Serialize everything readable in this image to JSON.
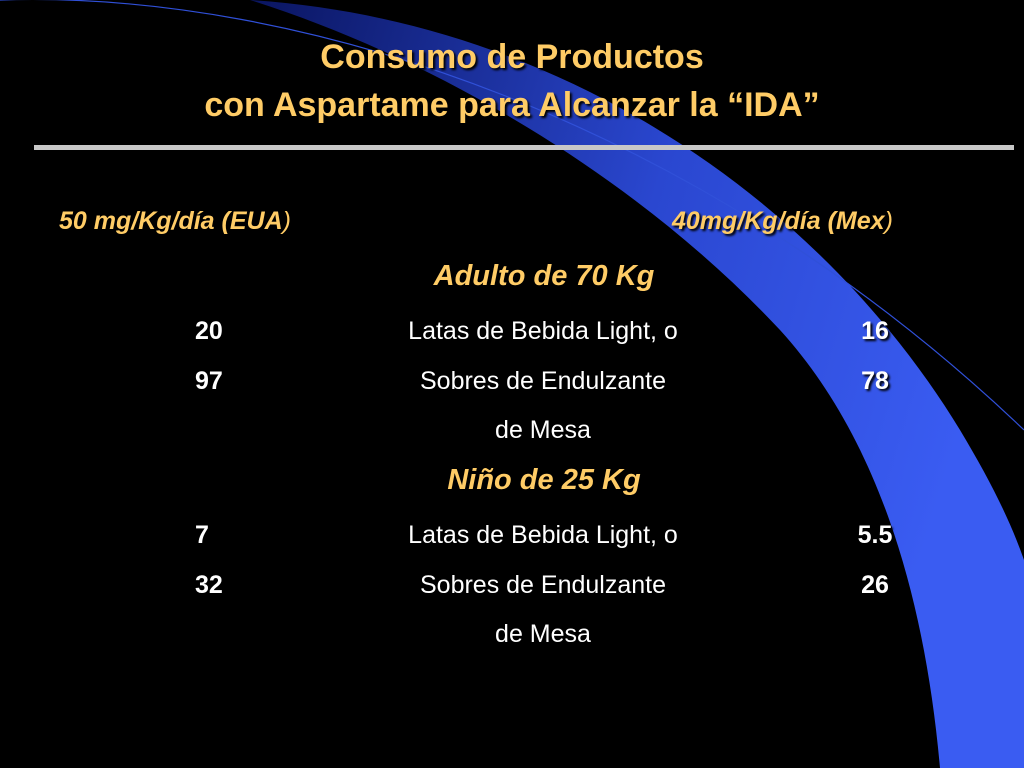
{
  "title": {
    "line1": "Consumo de Productos",
    "line2": "con Aspartame para Alcanzar la “IDA”"
  },
  "headers": {
    "left": "50 mg/Kg/día (EUA",
    "left_paren": ")",
    "right": "40mg/Kg/día (Mex",
    "right_paren": ")"
  },
  "adult": {
    "heading": "Adulto de 70 Kg",
    "rows": [
      {
        "left": "20",
        "desc": "Latas de Bebida Light, o",
        "right": "16"
      },
      {
        "left": "97",
        "desc": "Sobres de Endulzante",
        "right": "78"
      }
    ],
    "desc_cont": "de Mesa"
  },
  "child": {
    "heading": "Niño de 25 Kg",
    "rows": [
      {
        "left": "7",
        "desc": "Latas de Bebida Light, o",
        "right": "5.5"
      },
      {
        "left": "32",
        "desc": "Sobres de Endulzante",
        "right": "26"
      }
    ],
    "desc_cont": "de Mesa"
  },
  "colors": {
    "background": "#000000",
    "title": "#FFCC66",
    "text": "#FFFFFF",
    "accent_shape": "#3355E6",
    "rule": "#C8C8C8"
  }
}
